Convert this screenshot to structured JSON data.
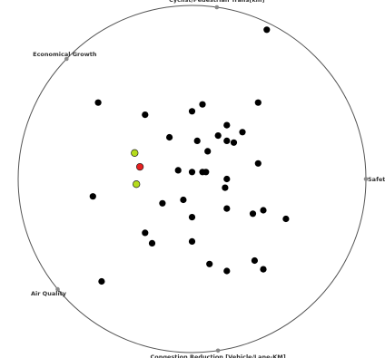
{
  "chart_data": {
    "type": "scatter",
    "title": "",
    "axes": [
      {
        "label": "Cyclist/Pedestrian Trails[km]",
        "angle_deg": 81.8
      },
      {
        "label": "Economical Growth",
        "angle_deg": 136.2
      },
      {
        "label": "Safety",
        "angle_deg": 0
      },
      {
        "label": "Air Quality",
        "angle_deg": 219.4
      },
      {
        "label": "Congestion Reduction [Vehicle/Lane-KM]",
        "angle_deg": 278.6
      }
    ],
    "x_range": [
      -1,
      1
    ],
    "y_range": [
      -1,
      1
    ],
    "colors": {
      "circle": "#555555",
      "anchor": "#8a8a8a",
      "point_default": "#000000",
      "point_highlight": "#e62020",
      "point_alt": "#b5dc1c"
    },
    "points": [
      {
        "x": 0.43,
        "y": 0.86,
        "group": "default"
      },
      {
        "x": -0.54,
        "y": 0.44,
        "group": "default"
      },
      {
        "x": 0.38,
        "y": 0.44,
        "group": "default"
      },
      {
        "x": -0.27,
        "y": 0.37,
        "group": "default"
      },
      {
        "x": 0.0,
        "y": 0.39,
        "group": "default"
      },
      {
        "x": 0.06,
        "y": 0.43,
        "group": "default"
      },
      {
        "x": 0.2,
        "y": 0.31,
        "group": "default"
      },
      {
        "x": 0.29,
        "y": 0.27,
        "group": "default"
      },
      {
        "x": 0.15,
        "y": 0.25,
        "group": "default"
      },
      {
        "x": 0.2,
        "y": 0.22,
        "group": "default"
      },
      {
        "x": 0.24,
        "y": 0.21,
        "group": "default"
      },
      {
        "x": -0.13,
        "y": 0.24,
        "group": "default"
      },
      {
        "x": 0.03,
        "y": 0.22,
        "group": "default"
      },
      {
        "x": 0.09,
        "y": 0.16,
        "group": "default"
      },
      {
        "x": 0.38,
        "y": 0.09,
        "group": "default"
      },
      {
        "x": -0.08,
        "y": 0.05,
        "group": "default"
      },
      {
        "x": 0.0,
        "y": 0.04,
        "group": "default"
      },
      {
        "x": 0.06,
        "y": 0.04,
        "group": "default"
      },
      {
        "x": 0.08,
        "y": 0.04,
        "group": "default"
      },
      {
        "x": 0.2,
        "y": 0.0,
        "group": "default"
      },
      {
        "x": 0.19,
        "y": -0.05,
        "group": "default"
      },
      {
        "x": -0.57,
        "y": -0.1,
        "group": "default"
      },
      {
        "x": -0.05,
        "y": -0.12,
        "group": "default"
      },
      {
        "x": -0.17,
        "y": -0.14,
        "group": "default"
      },
      {
        "x": 0.2,
        "y": -0.17,
        "group": "default"
      },
      {
        "x": 0.35,
        "y": -0.2,
        "group": "default"
      },
      {
        "x": 0.41,
        "y": -0.18,
        "group": "default"
      },
      {
        "x": 0.0,
        "y": -0.22,
        "group": "default"
      },
      {
        "x": 0.54,
        "y": -0.23,
        "group": "default"
      },
      {
        "x": -0.27,
        "y": -0.31,
        "group": "default"
      },
      {
        "x": -0.23,
        "y": -0.37,
        "group": "default"
      },
      {
        "x": 0.0,
        "y": -0.36,
        "group": "default"
      },
      {
        "x": 0.36,
        "y": -0.47,
        "group": "default"
      },
      {
        "x": 0.1,
        "y": -0.49,
        "group": "default"
      },
      {
        "x": 0.2,
        "y": -0.53,
        "group": "default"
      },
      {
        "x": 0.41,
        "y": -0.52,
        "group": "default"
      },
      {
        "x": -0.52,
        "y": -0.59,
        "group": "default"
      },
      {
        "x": -0.3,
        "y": 0.07,
        "group": "highlight"
      },
      {
        "x": -0.33,
        "y": 0.15,
        "group": "alt"
      },
      {
        "x": -0.32,
        "y": -0.03,
        "group": "alt"
      }
    ]
  }
}
